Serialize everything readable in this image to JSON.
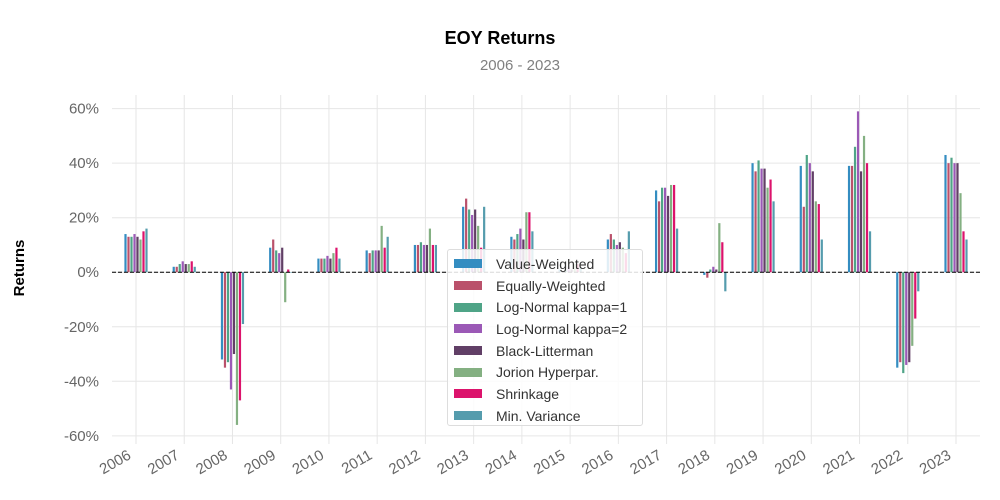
{
  "chart_data": {
    "type": "bar",
    "title": "EOY Returns",
    "subtitle": "2006 - 2023",
    "xlabel": "",
    "ylabel": "Returns",
    "ylim": [
      -0.63,
      0.65
    ],
    "yticks": [
      0.6,
      0.4,
      0.2,
      0.0,
      -0.2,
      -0.4,
      -0.6
    ],
    "ytick_labels": [
      "60%",
      "40%",
      "20%",
      "0%",
      "-20%",
      "-40%",
      "-60%"
    ],
    "categories": [
      "2006",
      "2007",
      "2008",
      "2009",
      "2010",
      "2011",
      "2012",
      "2013",
      "2014",
      "2015",
      "2016",
      "2017",
      "2018",
      "2019",
      "2020",
      "2021",
      "2022",
      "2023"
    ],
    "grid": true,
    "legend_position": "center",
    "series": [
      {
        "name": "Value-Weighted",
        "color": "#348dc1",
        "values": [
          0.14,
          0.02,
          -0.32,
          0.09,
          0.05,
          0.08,
          0.1,
          0.24,
          0.13,
          0.01,
          0.12,
          0.3,
          -0.01,
          0.4,
          0.39,
          0.39,
          -0.35,
          0.43
        ]
      },
      {
        "name": "Equally-Weighted",
        "color": "#ba516b",
        "values": [
          0.13,
          0.02,
          -0.35,
          0.12,
          0.05,
          0.07,
          0.1,
          0.27,
          0.12,
          0.0,
          0.14,
          0.26,
          -0.02,
          0.37,
          0.24,
          0.39,
          -0.33,
          0.4
        ]
      },
      {
        "name": "Log-Normal kappa=1",
        "color": "#4fa487",
        "values": [
          0.13,
          0.03,
          -0.33,
          0.08,
          0.05,
          0.08,
          0.11,
          0.23,
          0.14,
          0.01,
          0.12,
          0.31,
          0.01,
          0.41,
          0.43,
          0.46,
          -0.37,
          0.42
        ]
      },
      {
        "name": "Log-Normal kappa=2",
        "color": "#9b59b6",
        "values": [
          0.14,
          0.04,
          -0.43,
          0.07,
          0.06,
          0.08,
          0.1,
          0.21,
          0.16,
          0.02,
          0.1,
          0.31,
          0.02,
          0.38,
          0.4,
          0.59,
          -0.34,
          0.4
        ]
      },
      {
        "name": "Black-Litterman",
        "color": "#613f66",
        "values": [
          0.13,
          0.03,
          -0.3,
          0.09,
          0.05,
          0.08,
          0.1,
          0.23,
          0.12,
          0.01,
          0.11,
          0.28,
          0.01,
          0.38,
          0.37,
          0.37,
          -0.33,
          0.4
        ]
      },
      {
        "name": "Jorion Hyperpar.",
        "color": "#84b082",
        "values": [
          0.12,
          0.03,
          -0.56,
          -0.11,
          0.07,
          0.17,
          0.16,
          0.17,
          0.22,
          0.03,
          0.09,
          0.32,
          0.18,
          0.31,
          0.26,
          0.5,
          -0.27,
          0.29
        ]
      },
      {
        "name": "Shrinkage",
        "color": "#dc136c",
        "values": [
          0.15,
          0.04,
          -0.47,
          0.01,
          0.09,
          0.09,
          0.1,
          0.09,
          0.22,
          0.03,
          0.07,
          0.32,
          0.11,
          0.34,
          0.25,
          0.4,
          -0.17,
          0.15
        ]
      },
      {
        "name": "Min. Variance",
        "color": "#559cad",
        "values": [
          0.16,
          0.02,
          -0.19,
          0.0,
          0.05,
          0.13,
          0.1,
          0.24,
          0.15,
          0.02,
          0.15,
          0.16,
          -0.07,
          0.26,
          0.12,
          0.15,
          -0.07,
          0.12
        ]
      }
    ]
  }
}
